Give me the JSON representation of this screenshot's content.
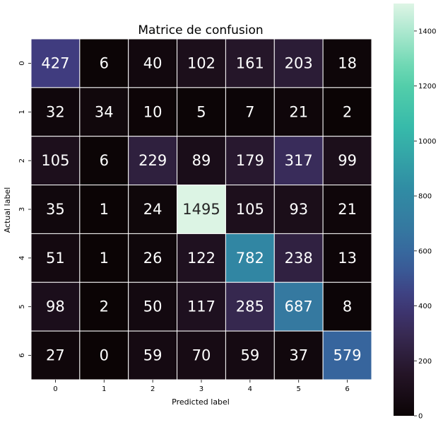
{
  "chart_data": {
    "type": "heatmap",
    "title": "Matrice de confusion",
    "xlabel": "Predicted label",
    "ylabel": "Actual label",
    "x_categories": [
      "0",
      "1",
      "2",
      "3",
      "4",
      "5",
      "6"
    ],
    "y_categories": [
      "0",
      "1",
      "2",
      "3",
      "4",
      "5",
      "6"
    ],
    "values": [
      [
        427,
        6,
        40,
        102,
        161,
        203,
        18
      ],
      [
        32,
        34,
        10,
        5,
        7,
        21,
        2
      ],
      [
        105,
        6,
        229,
        89,
        179,
        317,
        99
      ],
      [
        35,
        1,
        24,
        1495,
        105,
        93,
        21
      ],
      [
        51,
        1,
        26,
        122,
        782,
        238,
        13
      ],
      [
        98,
        2,
        50,
        117,
        285,
        687,
        8
      ],
      [
        27,
        0,
        59,
        70,
        59,
        37,
        579
      ]
    ],
    "colormap": "mako",
    "value_range": [
      0,
      1500
    ],
    "colorbar_ticks": [
      0,
      200,
      400,
      600,
      800,
      1000,
      1200,
      1400
    ],
    "grid_color": "#ffffff"
  }
}
